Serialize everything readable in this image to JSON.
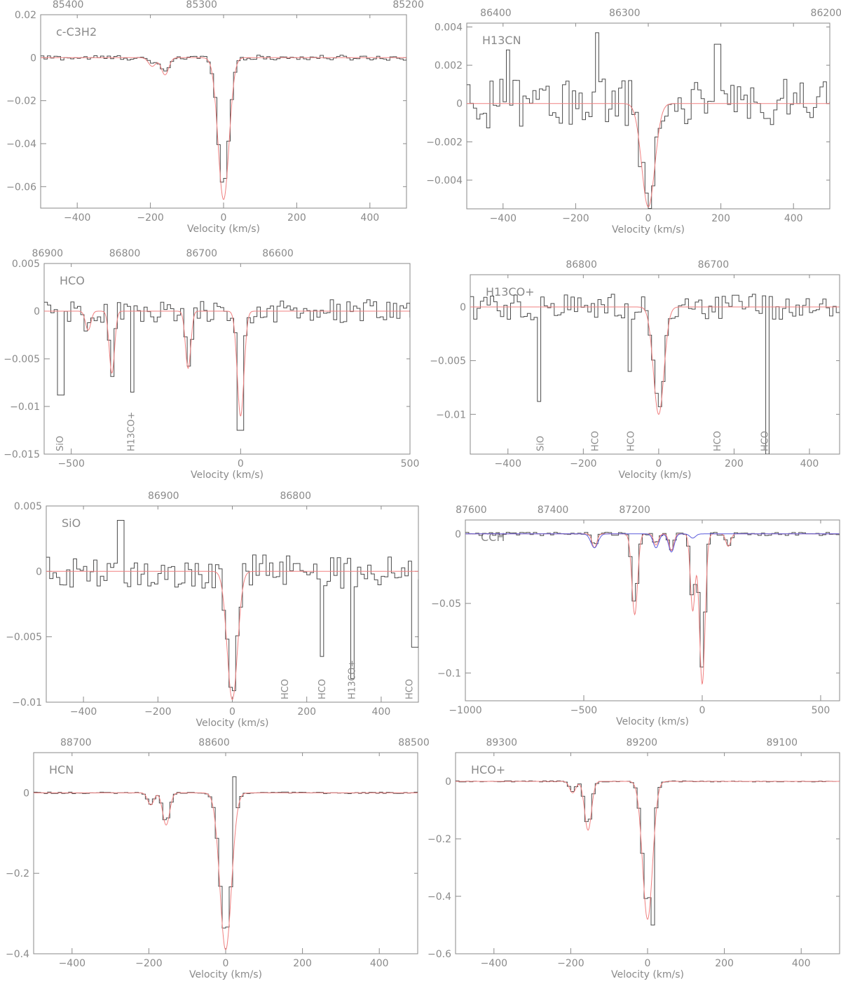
{
  "chart_data": [
    {
      "type": "line",
      "molecule": "c-C3H2",
      "xlabel": "Velocity (km/s)",
      "xlim": [
        -500,
        500
      ],
      "ylim": [
        -0.07,
        0.02
      ],
      "xticks": [
        -400,
        -200,
        0,
        200,
        400
      ],
      "yticks": [
        0.02,
        0,
        -0.02,
        -0.04,
        -0.06
      ],
      "ytick_labels": [
        "0.02",
        "0",
        "−0.02",
        "−0.04",
        "−0.06"
      ],
      "top_axis": {
        "ticks": [
          85400,
          85300,
          85200
        ],
        "positions": [
          -425,
          -60,
          505
        ]
      },
      "noise": 0.0012,
      "components": [
        {
          "v": -195,
          "depth": -0.004,
          "width": 10
        },
        {
          "v": -160,
          "depth": -0.008,
          "width": 10
        },
        {
          "v": 0,
          "depth": -0.066,
          "width": 15
        }
      ],
      "spikes": [],
      "line_labels": [],
      "blue_model": null
    },
    {
      "type": "line",
      "molecule": "H13CN",
      "xlabel": "Velocity (km/s)",
      "xlim": [
        -500,
        500
      ],
      "ylim": [
        -0.0055,
        0.0042
      ],
      "xticks": [
        -400,
        -200,
        0,
        200,
        400
      ],
      "yticks": [
        0.004,
        0.002,
        0,
        -0.002,
        -0.004
      ],
      "ytick_labels": [
        "0.004",
        "0.002",
        "0",
        "−0.002",
        "−0.004"
      ],
      "top_axis": {
        "ticks": [
          86400,
          86300,
          86200
        ],
        "positions": [
          -420,
          -65,
          490
        ]
      },
      "noise": 0.0013,
      "components": [
        {
          "v": 0,
          "depth": -0.0054,
          "width": 18
        }
      ],
      "spikes": [
        {
          "v": -140,
          "value": 0.0037
        },
        {
          "v": 190,
          "value": 0.0031
        },
        {
          "v": -390,
          "value": 0.0028
        }
      ],
      "line_labels": [],
      "blue_model": null
    },
    {
      "type": "line",
      "molecule": "HCO",
      "xlabel": "Velocity (km/s)",
      "xlim": [
        -580,
        500
      ],
      "ylim": [
        -0.015,
        0.005
      ],
      "xticks": [
        -500,
        0,
        500
      ],
      "yticks": [
        0.005,
        0,
        -0.005,
        -0.01,
        -0.015
      ],
      "ytick_labels": [
        "0.005",
        "0",
        "−0.005",
        "−0.01",
        "−0.015"
      ],
      "top_axis": {
        "ticks": [
          86900,
          86800,
          86700,
          86600
        ],
        "positions": [
          -570,
          -342,
          -115,
          110
        ]
      },
      "noise": 0.0012,
      "components": [
        {
          "v": -450,
          "depth": -0.002,
          "width": 8
        },
        {
          "v": -380,
          "depth": -0.0065,
          "width": 8
        },
        {
          "v": -155,
          "depth": -0.006,
          "width": 8
        },
        {
          "v": 0,
          "depth": -0.011,
          "width": 10
        }
      ],
      "spikes": [
        {
          "v": -530,
          "value": -0.0088
        },
        {
          "v": -320,
          "value": -0.0085
        },
        {
          "v": 0,
          "value": -0.0125
        }
      ],
      "line_labels": [
        {
          "text": "SiO",
          "v": -535
        },
        {
          "text": "H13CO+",
          "v": -325
        }
      ],
      "blue_model": null
    },
    {
      "type": "line",
      "molecule": "H13CO+",
      "xlabel": "Velocity (km/s)",
      "xlim": [
        -500,
        480
      ],
      "ylim": [
        -0.0137,
        0.003
      ],
      "xticks": [
        -400,
        -200,
        0,
        200,
        400
      ],
      "yticks": [
        0,
        -0.005,
        -0.01
      ],
      "ytick_labels": [
        "0",
        "−0.005",
        "−0.01"
      ],
      "top_axis": {
        "ticks": [
          86800,
          86700
        ],
        "positions": [
          -205,
          145
        ]
      },
      "noise": 0.0012,
      "components": [
        {
          "v": 0,
          "depth": -0.01,
          "width": 14
        }
      ],
      "spikes": [
        {
          "v": -320,
          "value": -0.0088
        },
        {
          "v": 285,
          "value": -0.0137
        },
        {
          "v": -75,
          "value": -0.006
        }
      ],
      "line_labels": [
        {
          "text": "SiO",
          "v": -315
        },
        {
          "text": "HCO",
          "v": -170
        },
        {
          "text": "HCO",
          "v": -75
        },
        {
          "text": "HCO",
          "v": 155
        },
        {
          "text": "HCO",
          "v": 280
        }
      ],
      "blue_model": null
    },
    {
      "type": "line",
      "molecule": "SiO",
      "xlabel": "Velocity (km/s)",
      "xlim": [
        -500,
        500
      ],
      "ylim": [
        -0.01,
        0.005
      ],
      "xticks": [
        -400,
        -200,
        0,
        200,
        400
      ],
      "yticks": [
        0.005,
        0,
        -0.005,
        -0.01
      ],
      "ytick_labels": [
        "0.005",
        "0",
        "−0.005",
        "−0.01"
      ],
      "top_axis": {
        "ticks": [
          86900,
          86800
        ],
        "positions": [
          -185,
          170
        ]
      },
      "noise": 0.0013,
      "components": [
        {
          "v": 0,
          "depth": -0.0098,
          "width": 14
        }
      ],
      "spikes": [
        {
          "v": -300,
          "value": 0.0039
        },
        {
          "v": 240,
          "value": -0.0065
        },
        {
          "v": 320,
          "value": -0.0082
        },
        {
          "v": 490,
          "value": -0.0058
        }
      ],
      "line_labels": [
        {
          "text": "HCO",
          "v": 140
        },
        {
          "text": "HCO",
          "v": 240
        },
        {
          "text": "H13CO+",
          "v": 320
        },
        {
          "text": "HCO",
          "v": 475
        }
      ],
      "blue_model": null
    },
    {
      "type": "line",
      "molecule": "CCH",
      "xlabel": "Velocity (km/s)",
      "xlim": [
        -1000,
        580
      ],
      "ylim": [
        -0.12,
        0.01
      ],
      "xticks": [
        -1000,
        -500,
        0,
        500
      ],
      "yticks": [
        0,
        -0.05,
        -0.1
      ],
      "ytick_labels": [
        "0",
        "−0.05",
        "−0.1"
      ],
      "top_axis": {
        "ticks": [
          87600,
          87400,
          87200
        ],
        "positions": [
          -975,
          -630,
          -285
        ]
      },
      "noise": 0.0012,
      "components": [
        {
          "v": -455,
          "depth": -0.01,
          "width": 10
        },
        {
          "v": -285,
          "depth": -0.058,
          "width": 12
        },
        {
          "v": -195,
          "depth": -0.008,
          "width": 10
        },
        {
          "v": -130,
          "depth": -0.012,
          "width": 10
        },
        {
          "v": -40,
          "depth": -0.055,
          "width": 10
        },
        {
          "v": 0,
          "depth": -0.108,
          "width": 12
        },
        {
          "v": 110,
          "depth": -0.009,
          "width": 10
        }
      ],
      "spikes": [],
      "line_labels": [],
      "blue_model": [
        {
          "v": -455,
          "depth": -0.01,
          "width": 15
        },
        {
          "v": -195,
          "depth": -0.01,
          "width": 12
        },
        {
          "v": -130,
          "depth": -0.013,
          "width": 12
        },
        {
          "v": -40,
          "depth": -0.003,
          "width": 12
        }
      ]
    },
    {
      "type": "line",
      "molecule": "HCN",
      "xlabel": "Velocity (km/s)",
      "xlim": [
        -500,
        500
      ],
      "ylim": [
        -0.4,
        0.1
      ],
      "xticks": [
        -400,
        -200,
        0,
        200,
        400
      ],
      "yticks": [
        0,
        -0.2,
        -0.4
      ],
      "ytick_labels": [
        "0",
        "−0.2",
        "−0.4"
      ],
      "top_axis": {
        "ticks": [
          88700,
          88600,
          88500
        ],
        "positions": [
          -390,
          -30,
          490
        ]
      },
      "noise": 0.002,
      "components": [
        {
          "v": -195,
          "depth": -0.03,
          "width": 8
        },
        {
          "v": -155,
          "depth": -0.08,
          "width": 9
        },
        {
          "v": 0,
          "depth": -0.39,
          "width": 15
        }
      ],
      "spikes": [
        {
          "v": 20,
          "value": 0.04
        }
      ],
      "line_labels": [],
      "blue_model": null
    },
    {
      "type": "line",
      "molecule": "HCO+",
      "xlabel": "Velocity (km/s)",
      "xlim": [
        -500,
        500
      ],
      "ylim": [
        -0.6,
        0.1
      ],
      "xticks": [
        -400,
        -200,
        0,
        200,
        400
      ],
      "yticks": [
        0,
        -0.2,
        -0.4,
        -0.6
      ],
      "ytick_labels": [
        "0",
        "−0.2",
        "−0.4",
        "−0.6"
      ],
      "top_axis": {
        "ticks": [
          89300,
          89200,
          89100
        ],
        "positions": [
          -380,
          -15,
          350
        ]
      },
      "noise": 0.002,
      "components": [
        {
          "v": -195,
          "depth": -0.04,
          "width": 8
        },
        {
          "v": -155,
          "depth": -0.17,
          "width": 9
        },
        {
          "v": 0,
          "depth": -0.48,
          "width": 13
        }
      ],
      "spikes": [
        {
          "v": 10,
          "value": -0.5
        }
      ],
      "line_labels": [],
      "blue_model": null
    }
  ]
}
